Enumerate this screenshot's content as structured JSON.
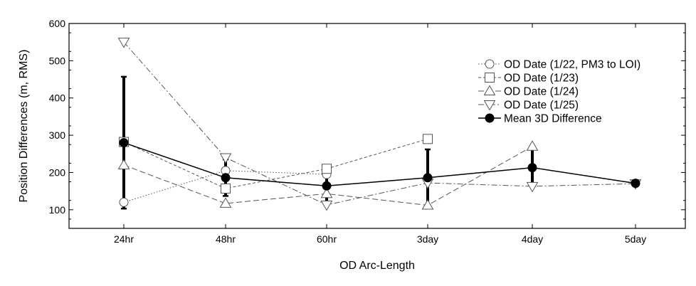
{
  "chart_data": {
    "type": "line",
    "xlabel": "OD Arc-Length",
    "ylabel": "Position Differences (m, RMS)",
    "categories": [
      "24hr",
      "48hr",
      "60hr",
      "3day",
      "4day",
      "5day"
    ],
    "ylim": [
      50,
      600
    ],
    "yticks": [
      100,
      200,
      300,
      400,
      500,
      600
    ],
    "grid": false,
    "legend_position": "top-right",
    "series": [
      {
        "name": "OD Date (1/22, PM3 to LOI)",
        "marker": "circle",
        "dash": "dotted",
        "values": [
          120,
          205,
          195,
          null,
          null,
          null
        ]
      },
      {
        "name": "OD Date (1/23)",
        "marker": "square",
        "dash": "dashed",
        "values": [
          282,
          157,
          210,
          290,
          null,
          null
        ]
      },
      {
        "name": "OD Date (1/24)",
        "marker": "triangle-up",
        "dash": "longdash",
        "values": [
          220,
          117,
          143,
          112,
          270,
          null
        ]
      },
      {
        "name": "OD Date (1/25)",
        "marker": "triangle-down",
        "dash": "dashdot",
        "values": [
          550,
          240,
          113,
          172,
          163,
          170
        ]
      },
      {
        "name": "Mean 3D Difference",
        "marker": "filled-circle",
        "dash": "solid",
        "values": [
          280,
          186,
          164,
          186,
          213,
          171
        ],
        "error_low": [
          103,
          137,
          120,
          112,
          162,
          null
        ],
        "error_high": [
          457,
          235,
          208,
          262,
          266,
          null
        ]
      }
    ]
  }
}
